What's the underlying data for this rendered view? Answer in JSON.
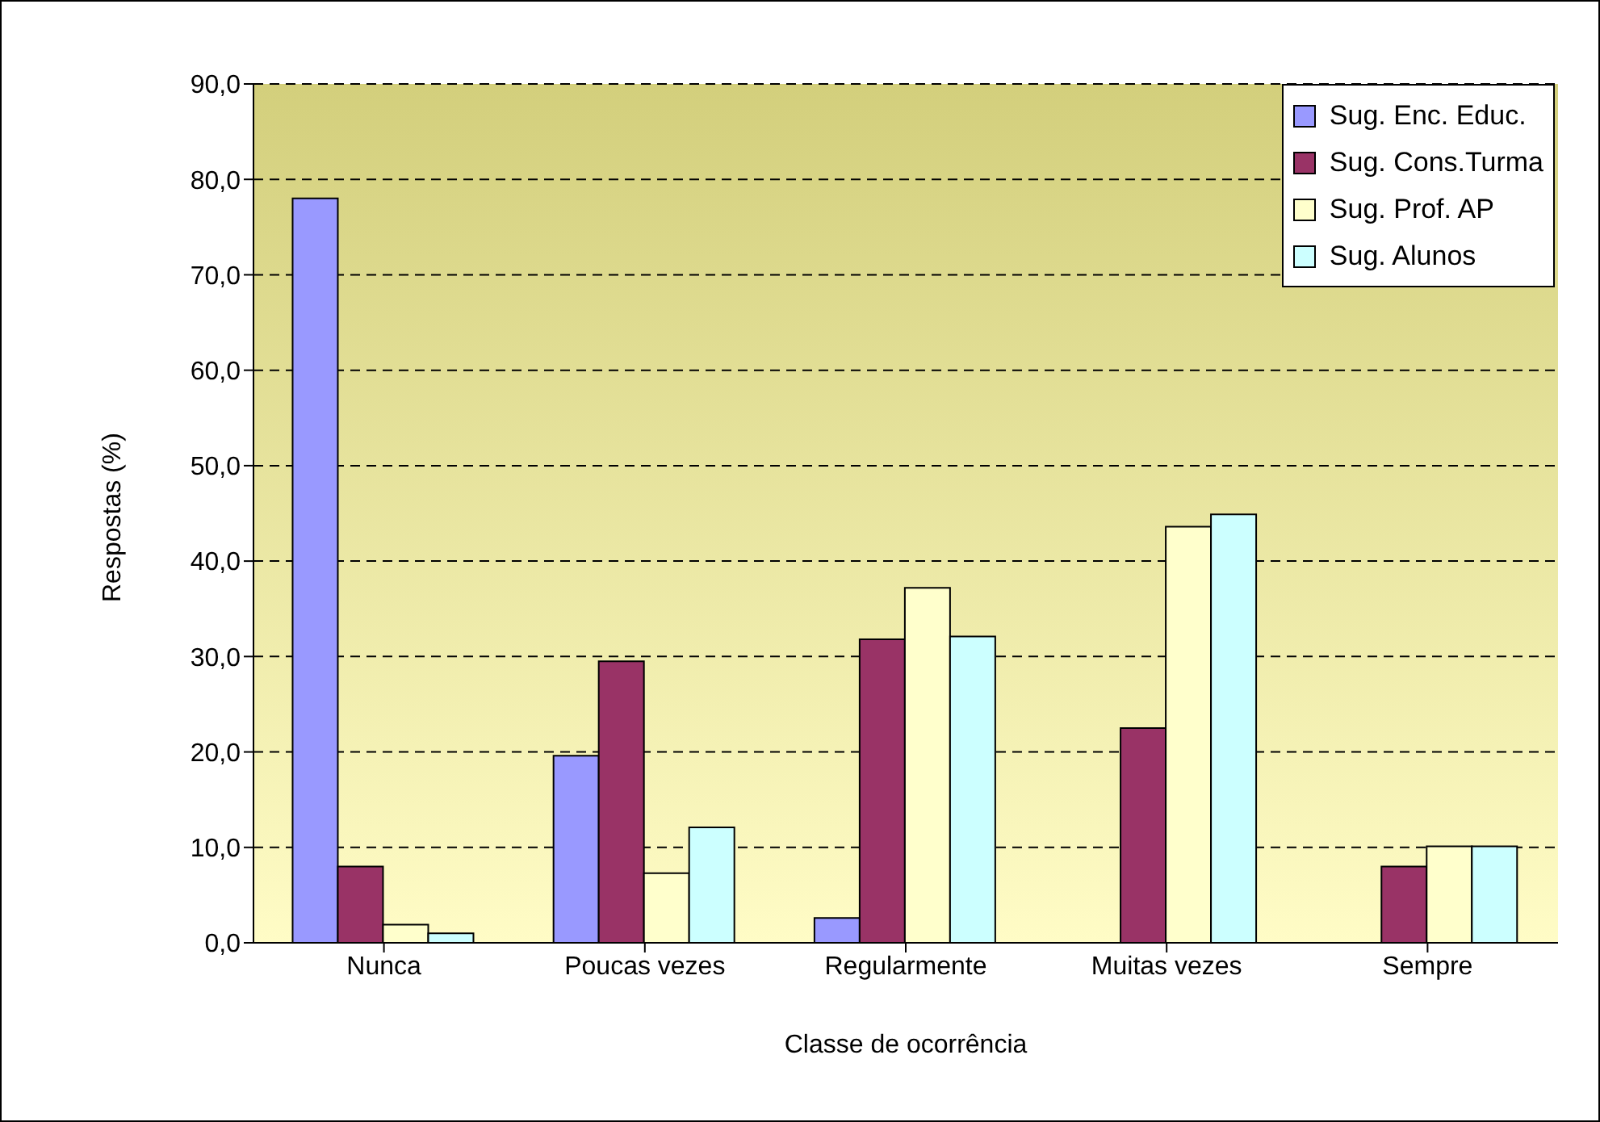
{
  "chart_data": {
    "type": "bar",
    "xlabel": "Classe de ocorrência",
    "ylabel": "Respostas (%)",
    "categories": [
      "Nunca",
      "Poucas vezes",
      "Regularmente",
      "Muitas vezes",
      "Sempre"
    ],
    "series": [
      {
        "name": "Sug. Enc. Educ.",
        "color": "#9999ff",
        "values": [
          78.0,
          19.6,
          2.6,
          0,
          0
        ]
      },
      {
        "name": "Sug. Cons.Turma",
        "color": "#993366",
        "values": [
          8.0,
          29.5,
          31.8,
          22.5,
          8.0
        ]
      },
      {
        "name": "Sug. Prof. AP",
        "color": "#ffffcc",
        "values": [
          1.9,
          7.3,
          37.2,
          43.6,
          10.1
        ]
      },
      {
        "name": "Sug. Alunos",
        "color": "#ccffff",
        "values": [
          1.0,
          12.1,
          32.1,
          44.9,
          10.1
        ]
      }
    ],
    "ylim": [
      0,
      90
    ],
    "yticks": [
      {
        "value": 0,
        "label": "0,0"
      },
      {
        "value": 10,
        "label": "10,0"
      },
      {
        "value": 20,
        "label": "20,0"
      },
      {
        "value": 30,
        "label": "30,0"
      },
      {
        "value": 40,
        "label": "40,0"
      },
      {
        "value": 50,
        "label": "50,0"
      },
      {
        "value": 60,
        "label": "60,0"
      },
      {
        "value": 70,
        "label": "70,0"
      },
      {
        "value": 80,
        "label": "80,0"
      },
      {
        "value": 90,
        "label": "90,0"
      }
    ],
    "grid": "y",
    "legend": "top right"
  }
}
